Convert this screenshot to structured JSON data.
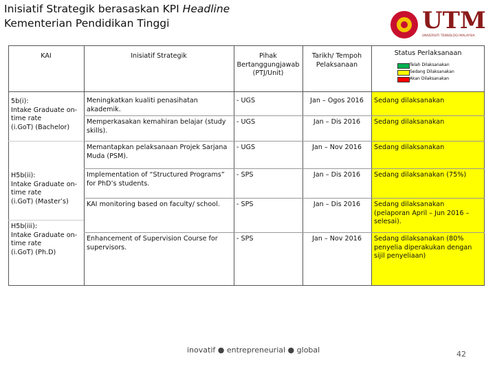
{
  "header": {
    "title_line1": "Inisiatif Strategik berasaskan KPI",
    "title_line1_italic": "Headline",
    "title_line2": "Kementerian Pendidikan Tinggi",
    "logo": "UTM",
    "logo_sub": "UNIVERSITI TEKNOLOGI MALAYSIA"
  },
  "table": {
    "columns": [
      "KAI",
      "Inisiatif Strategik",
      "Pihak Bertanggungjawab (PTJ/Unit)",
      "Tarikh/ Tempoh Pelaksanaan",
      "Status Perlaksanaan"
    ],
    "legend": [
      "Telah Dilaksanakan",
      "Sedang Dilaksanakan",
      "Akan Dilaksanakan"
    ],
    "kai": [
      [
        "5b(i):",
        "Intake Graduate on-",
        "time rate",
        "(i.GoT) (Bachelor)"
      ],
      [
        "H5b(ii):",
        "Intake Graduate on-",
        "time rate",
        "(i.GoT) (Master’s)"
      ],
      [
        "H5b(iii):",
        "Intake Graduate on-",
        "time rate",
        "(i.GoT) (Ph.D)"
      ]
    ],
    "rows": [
      [
        "Meningkatkan kualiti penasihatan akademik.",
        "-  UGS",
        "Jan – Ogos 2016",
        "Sedang dilaksanakan"
      ],
      [
        "Memperkasakan kemahiran belajar (study skills).",
        "-  UGS",
        "Jan – Dis 2016",
        "Sedang dilaksanakan"
      ],
      [
        "Memantapkan pelaksanaan Projek Sarjana Muda (PSM).",
        "-  UGS",
        "Jan – Nov 2016",
        "Sedang dilaksanakan"
      ],
      [
        "Implementation of “Structured Programs” for PhD’s students.",
        "-  SPS",
        "Jan – Dis 2016",
        "Sedang dilaksanakan (75%)"
      ],
      [
        "KAI monitoring based on faculty/ school.",
        "-  SPS",
        "Jan – Dis 2016",
        "Sedang dilaksanakan (pelaporan April – Jun 2016 – selesai)."
      ],
      [
        "Enhancement of Supervision Course for supervisors.",
        "-  SPS",
        "Jan – Nov 2016",
        "Sedang dilaksanakan (80% penyelia diperakukan dengan sijil penyeliaan)"
      ]
    ]
  },
  "footer": {
    "tagline": "inovatif ● entrepreneurial ● global",
    "page_number": "42"
  }
}
